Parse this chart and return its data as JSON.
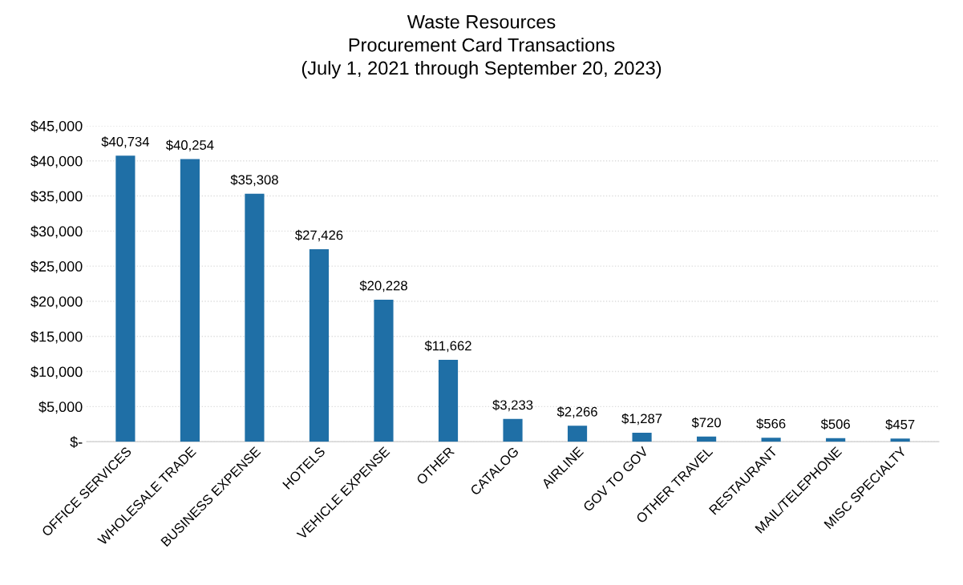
{
  "chart_data": {
    "type": "bar",
    "title": "Waste Resources\nProcurement Card Transactions\n(July 1, 2021 through September 20, 2023)",
    "categories": [
      "OFFICE SERVICES",
      "WHOLESALE TRADE",
      "BUSINESS EXPENSE",
      "HOTELS",
      "VEHICLE EXPENSE",
      "OTHER",
      "CATALOG",
      "AIRLINE",
      "GOV TO GOV",
      "OTHER TRAVEL",
      "RESTAURANT",
      "MAIL/TELEPHONE",
      "MISC SPECIALTY"
    ],
    "values": [
      40734,
      40254,
      35308,
      27426,
      20228,
      11662,
      3233,
      2266,
      1287,
      720,
      566,
      506,
      457
    ],
    "value_labels": [
      "$40,734",
      "$40,254",
      "$35,308",
      "$27,426",
      "$20,228",
      "$11,662",
      "$3,233",
      "$2,266",
      "$1,287",
      "$720",
      "$566",
      "$506",
      "$457"
    ],
    "color": "#1f6fa6",
    "ylim": [
      0,
      45000
    ],
    "yticks": [
      {
        "value": 0,
        "label": "$-"
      },
      {
        "value": 5000,
        "label": "$5,000"
      },
      {
        "value": 10000,
        "label": "$10,000"
      },
      {
        "value": 15000,
        "label": "$15,000"
      },
      {
        "value": 20000,
        "label": "$20,000"
      },
      {
        "value": 25000,
        "label": "$25,000"
      },
      {
        "value": 30000,
        "label": "$30,000"
      },
      {
        "value": 35000,
        "label": "$35,000"
      },
      {
        "value": 40000,
        "label": "$40,000"
      },
      {
        "value": 45000,
        "label": "$45,000"
      }
    ],
    "grid": "y",
    "legend": false
  }
}
